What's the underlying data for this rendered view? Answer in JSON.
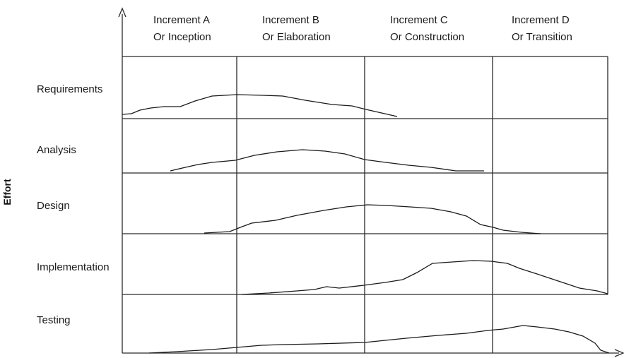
{
  "y_axis_label": "Effort",
  "phases": [
    {
      "line1": "Increment A",
      "line2": "Or Inception"
    },
    {
      "line1": "Increment B",
      "line2": "Or Elaboration"
    },
    {
      "line1": "Increment C",
      "line2": "Or Construction"
    },
    {
      "line1": "Increment D",
      "line2": "Or Transition"
    }
  ],
  "disciplines": [
    {
      "label": "Requirements"
    },
    {
      "label": "Analysis"
    },
    {
      "label": "Design"
    },
    {
      "label": "Implementation"
    },
    {
      "label": "Testing"
    }
  ]
}
